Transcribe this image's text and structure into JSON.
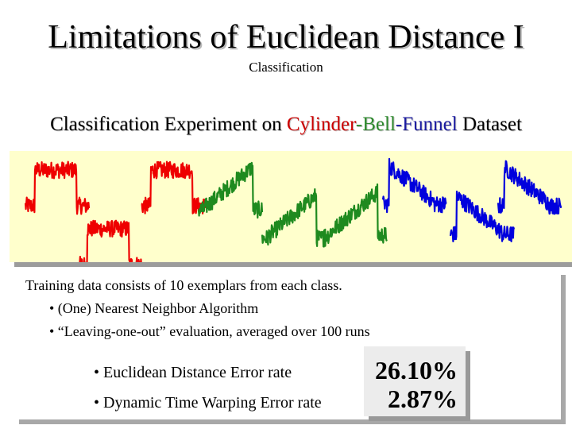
{
  "title": "Limitations of Euclidean Distance I",
  "subtitle": "Classification",
  "heading": {
    "prefix": "Classification Experiment on ",
    "cylinder": "Cylinder",
    "dash1": "-",
    "bell": "Bell",
    "dash2": "-",
    "funnel": "Funnel",
    "suffix": " Dataset"
  },
  "colors": {
    "cylinder": "#ee0000",
    "bell": "#1f8a1f",
    "funnel": "#0000dd",
    "panel": "#ffffcc"
  },
  "signals": [
    {
      "class": "cylinder",
      "shape": "cylinder",
      "label": "red"
    },
    {
      "class": "cylinder",
      "shape": "cylinder-low",
      "label": "red"
    },
    {
      "class": "cylinder",
      "shape": "cylinder",
      "label": "red"
    },
    {
      "class": "bell",
      "shape": "bell",
      "label": "green"
    },
    {
      "class": "bell",
      "shape": "bell",
      "label": "green"
    },
    {
      "class": "bell",
      "shape": "bell",
      "label": "green"
    },
    {
      "class": "funnel",
      "shape": "funnel",
      "label": "blue"
    },
    {
      "class": "funnel",
      "shape": "funnel",
      "label": "blue"
    },
    {
      "class": "funnel",
      "shape": "funnel",
      "label": "blue"
    }
  ],
  "info": {
    "training": "Training data consists of 10 exemplars from each class.",
    "bullet1": "• (One) Nearest Neighbor Algorithm",
    "bullet2": "• “Leaving-one-out” evaluation, averaged over 100 runs"
  },
  "results": {
    "euclidean_label": "• Euclidean Distance Error rate",
    "dtw_label": "• Dynamic Time Warping Error rate",
    "euclidean_value": "26.10%",
    "dtw_value": "2.87%"
  }
}
